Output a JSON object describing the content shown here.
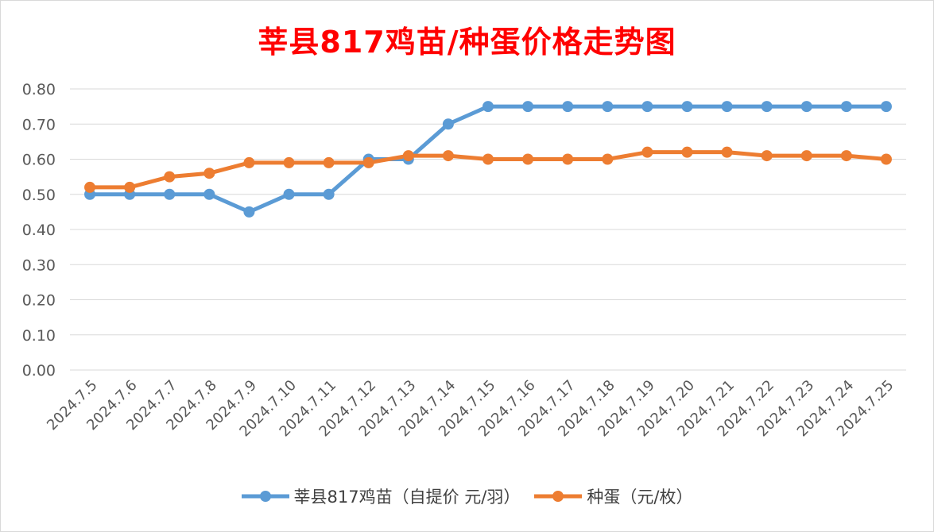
{
  "chart_data": {
    "type": "line",
    "title": "莘县817鸡苗/种蛋价格走势图",
    "categories": [
      "2024.7.5",
      "2024.7.6",
      "2024.7.7",
      "2024.7.8",
      "2024.7.9",
      "2024.7.10",
      "2024.7.11",
      "2024.7.12",
      "2024.7.13",
      "2024.7.14",
      "2024.7.15",
      "2024.7.16",
      "2024.7.17",
      "2024.7.18",
      "2024.7.19",
      "2024.7.20",
      "2024.7.21",
      "2024.7.22",
      "2024.7.23",
      "2024.7.24",
      "2024.7.25"
    ],
    "series": [
      {
        "name": "莘县817鸡苗（自提价 元/羽）",
        "color": "#5b9bd5",
        "values": [
          0.5,
          0.5,
          0.5,
          0.5,
          0.45,
          0.5,
          0.5,
          0.6,
          0.6,
          0.7,
          0.75,
          0.75,
          0.75,
          0.75,
          0.75,
          0.75,
          0.75,
          0.75,
          0.75,
          0.75,
          0.75
        ]
      },
      {
        "name": "种蛋（元/枚）",
        "color": "#ed7d31",
        "values": [
          0.52,
          0.52,
          0.55,
          0.56,
          0.59,
          0.59,
          0.59,
          0.59,
          0.61,
          0.61,
          0.6,
          0.6,
          0.6,
          0.6,
          0.62,
          0.62,
          0.62,
          0.61,
          0.61,
          0.61,
          0.6
        ]
      }
    ],
    "ylim": [
      0,
      0.8
    ],
    "yticks": [
      "0.00",
      "0.10",
      "0.20",
      "0.30",
      "0.40",
      "0.50",
      "0.60",
      "0.70",
      "0.80"
    ],
    "grid": true,
    "legend_position": "bottom"
  }
}
